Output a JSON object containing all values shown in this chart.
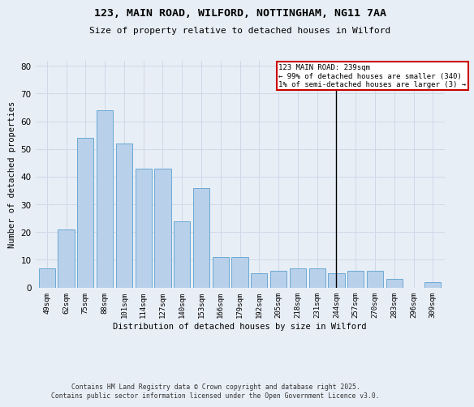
{
  "title_line1": "123, MAIN ROAD, WILFORD, NOTTINGHAM, NG11 7AA",
  "title_line2": "Size of property relative to detached houses in Wilford",
  "xlabel": "Distribution of detached houses by size in Wilford",
  "ylabel": "Number of detached properties",
  "bar_labels": [
    "49sqm",
    "62sqm",
    "75sqm",
    "88sqm",
    "101sqm",
    "114sqm",
    "127sqm",
    "140sqm",
    "153sqm",
    "166sqm",
    "179sqm",
    "192sqm",
    "205sqm",
    "218sqm",
    "231sqm",
    "244sqm",
    "257sqm",
    "270sqm",
    "283sqm",
    "296sqm",
    "309sqm"
  ],
  "bar_values": [
    7,
    21,
    54,
    64,
    52,
    43,
    43,
    24,
    36,
    11,
    11,
    5,
    6,
    7,
    7,
    5,
    6,
    6,
    3,
    0,
    2
  ],
  "bar_color": "#b8d0ea",
  "bar_edge_color": "#6aaad4",
  "vline_label": "244sqm",
  "vline_color": "#000000",
  "annotation_text": "123 MAIN ROAD: 239sqm\n← 99% of detached houses are smaller (340)\n1% of semi-detached houses are larger (3) →",
  "annotation_box_color": "#ffffff",
  "annotation_box_edge_color": "#cc0000",
  "ylim": [
    0,
    82
  ],
  "yticks": [
    0,
    10,
    20,
    30,
    40,
    50,
    60,
    70,
    80
  ],
  "grid_color": "#d0d8e8",
  "bg_color": "#e8eef6",
  "footer_text": "Contains HM Land Registry data © Crown copyright and database right 2025.\nContains public sector information licensed under the Open Government Licence v3.0."
}
